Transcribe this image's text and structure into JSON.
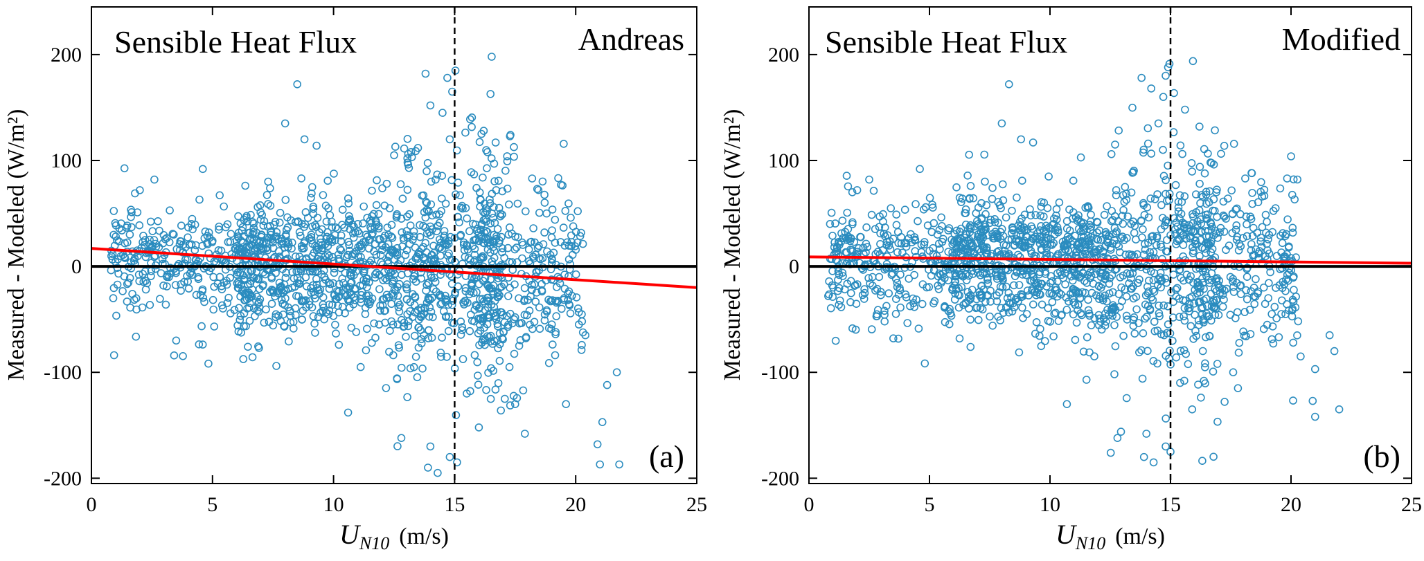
{
  "figure": {
    "panel_a_label": "(a)",
    "panel_b_label": "(b)"
  },
  "chart_data": [
    {
      "type": "scatter",
      "title": "Sensible Heat Flux",
      "subtitle": "Andreas",
      "panel": "(a)",
      "xlabel_main": "U",
      "xlabel_sub": "N10",
      "xlabel_unit": "(m/s)",
      "ylabel": "Measured - Modeled (W/m²)",
      "xlim": [
        0,
        25
      ],
      "ylim": [
        -205,
        245
      ],
      "xticks": [
        0,
        5,
        10,
        15,
        20,
        25
      ],
      "yticks": [
        -200,
        -100,
        0,
        100,
        200
      ],
      "grid": false,
      "marker_color": "#2b8cbf",
      "zero_line": {
        "y": 0,
        "color": "#000000"
      },
      "fit_line": {
        "x": [
          0,
          25
        ],
        "y": [
          17,
          -20
        ],
        "color": "#ff0000"
      },
      "vline": {
        "x": 15,
        "style": "dashed",
        "color": "#000000"
      },
      "points_highlight": [
        [
          8.0,
          135
        ],
        [
          8.5,
          172
        ],
        [
          9.3,
          114
        ],
        [
          8.8,
          120
        ],
        [
          13.8,
          182
        ],
        [
          14.0,
          152
        ],
        [
          14.7,
          178
        ],
        [
          14.9,
          165
        ],
        [
          14.5,
          145
        ],
        [
          14.8,
          120
        ],
        [
          16.2,
          128
        ],
        [
          13.2,
          108
        ],
        [
          12.5,
          105
        ],
        [
          4.6,
          92
        ],
        [
          2.6,
          82
        ],
        [
          2.0,
          72
        ],
        [
          1.8,
          69
        ],
        [
          1.9,
          51
        ],
        [
          7.3,
          80
        ],
        [
          18.2,
          83
        ],
        [
          18.8,
          50
        ],
        [
          13.9,
          -190
        ],
        [
          14.3,
          -195
        ],
        [
          14.8,
          -180
        ],
        [
          15.1,
          -185
        ],
        [
          21.8,
          -187
        ],
        [
          21.0,
          -187
        ],
        [
          20.9,
          -168
        ],
        [
          21.1,
          -147
        ],
        [
          21.3,
          -112
        ],
        [
          21.7,
          -100
        ],
        [
          20.4,
          -65
        ],
        [
          19.2,
          -47
        ],
        [
          10.6,
          -138
        ],
        [
          3.5,
          -70
        ],
        [
          0.9,
          -30
        ],
        [
          12.8,
          -162
        ],
        [
          14.0,
          -170
        ],
        [
          16.0,
          -152
        ],
        [
          17.9,
          -158
        ],
        [
          17.5,
          -130
        ],
        [
          19.6,
          -130
        ],
        [
          15.5,
          -120
        ]
      ],
      "cluster_generator": {
        "seed": 11,
        "center_count": 1250,
        "upper_count": 230,
        "lower_count": 230,
        "x_range": [
          0.8,
          20.3
        ],
        "y_sd_base": 22
      }
    },
    {
      "type": "scatter",
      "title": "Sensible Heat Flux",
      "subtitle": "Modified",
      "panel": "(b)",
      "xlabel_main": "U",
      "xlabel_sub": "N10",
      "xlabel_unit": "(m/s)",
      "ylabel": "Measured - Modeled (W/m²)",
      "xlim": [
        0,
        25
      ],
      "ylim": [
        -205,
        245
      ],
      "xticks": [
        0,
        5,
        10,
        15,
        20,
        25
      ],
      "yticks": [
        -200,
        -100,
        0,
        100,
        200
      ],
      "grid": false,
      "marker_color": "#2b8cbf",
      "zero_line": {
        "y": 0,
        "color": "#000000"
      },
      "fit_line": {
        "x": [
          0,
          25
        ],
        "y": [
          9,
          3
        ],
        "color": "#ff0000"
      },
      "vline": {
        "x": 15,
        "style": "dashed",
        "color": "#000000"
      },
      "points_highlight": [
        [
          8.0,
          135
        ],
        [
          8.3,
          172
        ],
        [
          8.8,
          120
        ],
        [
          9.3,
          117
        ],
        [
          13.8,
          178
        ],
        [
          14.2,
          168
        ],
        [
          14.8,
          180
        ],
        [
          14.9,
          188
        ],
        [
          14.7,
          160
        ],
        [
          15.6,
          148
        ],
        [
          16.2,
          132
        ],
        [
          14.5,
          135
        ],
        [
          12.7,
          115
        ],
        [
          4.6,
          92
        ],
        [
          2.5,
          82
        ],
        [
          2.0,
          72
        ],
        [
          1.8,
          70
        ],
        [
          7.3,
          80
        ],
        [
          18.1,
          83
        ],
        [
          18.8,
          66
        ],
        [
          13.9,
          -180
        ],
        [
          14.3,
          -185
        ],
        [
          14.8,
          -170
        ],
        [
          15.0,
          -175
        ],
        [
          20.9,
          -127
        ],
        [
          21.0,
          -142
        ],
        [
          21.6,
          -65
        ],
        [
          21.8,
          -80
        ],
        [
          22.0,
          -135
        ],
        [
          20.4,
          -85
        ],
        [
          21.0,
          -97
        ],
        [
          19.2,
          -45
        ],
        [
          10.7,
          -130
        ],
        [
          3.5,
          -68
        ],
        [
          0.8,
          -28
        ],
        [
          12.8,
          -162
        ],
        [
          14.0,
          -158
        ],
        [
          15.9,
          -135
        ],
        [
          17.8,
          -115
        ],
        [
          17.6,
          -100
        ],
        [
          19.6,
          -45
        ],
        [
          15.4,
          -110
        ]
      ],
      "cluster_generator": {
        "seed": 23,
        "center_count": 1250,
        "upper_count": 230,
        "lower_count": 230,
        "x_range": [
          0.8,
          20.3
        ],
        "y_sd_base": 22
      }
    }
  ]
}
